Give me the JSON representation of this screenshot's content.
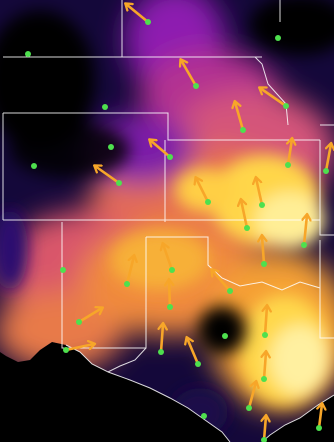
{
  "map": {
    "colors": {
      "background": "#000000",
      "land_base": "#1b0a55",
      "field_purple": "#6a11b0",
      "field_magenta": "#c23a8a",
      "field_orange": "#f28b3a",
      "field_yellow": "#ffe15a",
      "field_pale": "#ffeea0",
      "borders": "#ffffff",
      "arrows": "#f7a629",
      "stations": "#4ee04e"
    }
  }
}
